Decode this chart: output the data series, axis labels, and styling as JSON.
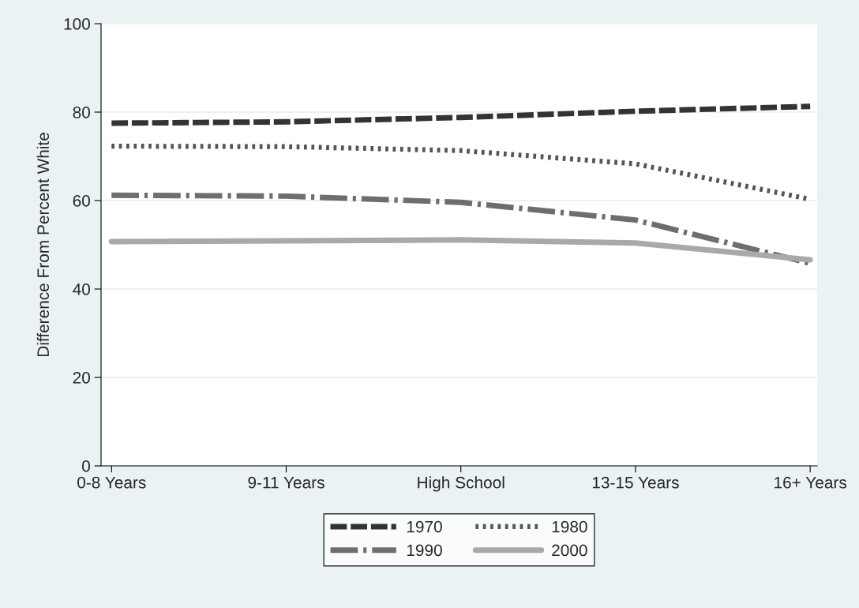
{
  "chart_data": {
    "type": "line",
    "ylabel": "Difference From Percent White",
    "categories": [
      "0-8 Years",
      "9-11 Years",
      "High School",
      "13-15 Years",
      "16+ Years"
    ],
    "series": [
      {
        "name": "1970",
        "color": "#333333",
        "line_style": "dashed",
        "values": [
          77.5,
          77.8,
          78.8,
          80.2,
          81.3
        ]
      },
      {
        "name": "1980",
        "color": "#555555",
        "line_style": "dotted",
        "values": [
          72.3,
          72.2,
          71.3,
          68.3,
          60.3
        ]
      },
      {
        "name": "1990",
        "color": "#6e6e6e",
        "line_style": "dashdot",
        "values": [
          61.2,
          61.0,
          59.6,
          55.6,
          45.8
        ]
      },
      {
        "name": "2000",
        "color": "#a9a9a9",
        "line_style": "solid",
        "values": [
          50.7,
          50.9,
          51.1,
          50.4,
          46.6
        ]
      }
    ],
    "ylim": [
      0,
      100
    ],
    "yticks": [
      0,
      20,
      40,
      60,
      80,
      100
    ],
    "grid": "y",
    "legend": "bottom",
    "marker": "none"
  }
}
